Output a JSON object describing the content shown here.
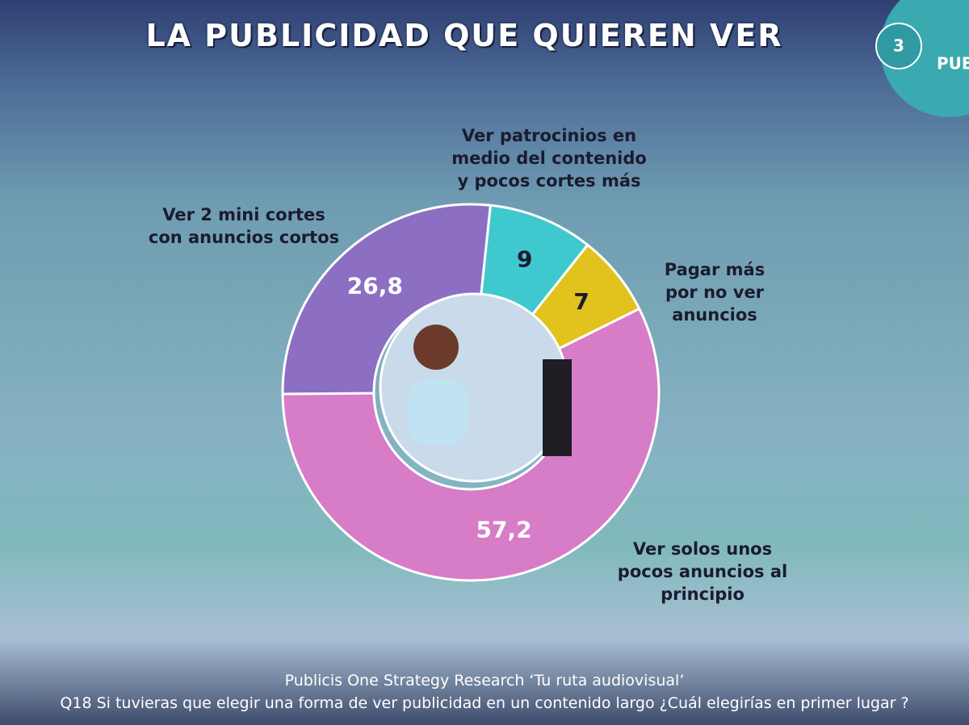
{
  "chart_data": {
    "type": "donut",
    "title": "LA PUBLICIDAD QUE QUIEREN VER",
    "section_number": "3",
    "section_label": "PUB",
    "categories": [
      "Ver patrocinios en medio del contenido y pocos cortes más",
      "Pagar más por no ver anuncios",
      "Ver solos unos pocos anuncios al principio",
      "Ver 2 mini cortes con anuncios cortos"
    ],
    "values": [
      9,
      7,
      57.2,
      26.8
    ],
    "value_labels": [
      "9",
      "7",
      "57,2",
      "26,8"
    ],
    "colors": [
      "#3fc9cf",
      "#e2c21c",
      "#d77cc6",
      "#8c6fc3"
    ],
    "source": "Publicis One Strategy Research ‘Tu ruta audiovisual’",
    "question": "Q18 Si tuvieras que elegir una forma de ver publicidad en un contenido largo ¿Cuál elegirías en primer lugar ?"
  }
}
